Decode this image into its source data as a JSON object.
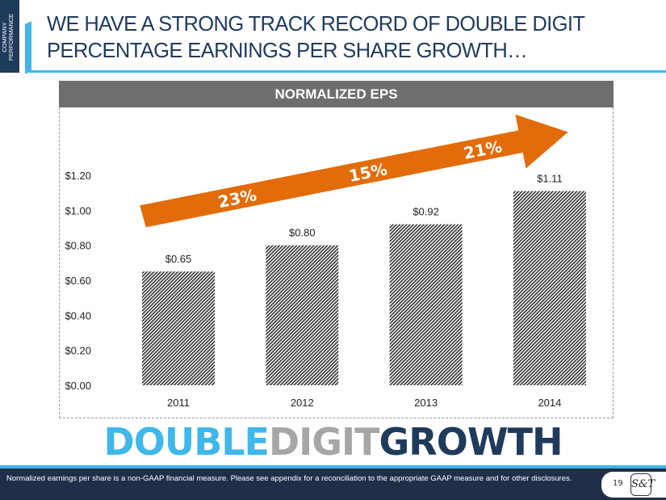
{
  "section_tag": "COMPANY PERFORMANCE",
  "title_line1": "WE HAVE A STRONG TRACK RECORD OF DOUBLE DIGIT",
  "title_line2": "PERCENTAGE EARNINGS PER SHARE GROWTH…",
  "chart_header": "NORMALIZED EPS",
  "tagline": {
    "part1": "DOUBLE",
    "part2": "DIGIT",
    "part3": "GROWTH"
  },
  "colors": {
    "navy": "#1f3b5c",
    "light_blue": "#3fb7ea",
    "gray": "#a6a6a6",
    "orange": "#e36c0a"
  },
  "footnote": "Normalized earnings per share is a non-GAAP financial measure. Please see appendix for a reconciliation to the appropriate GAAP measure and for other disclosures.",
  "page_number": "19",
  "logo_text": "S&T",
  "chart_data": {
    "type": "bar",
    "title": "NORMALIZED EPS",
    "categories": [
      "2011",
      "2012",
      "2013",
      "2014"
    ],
    "values": [
      0.65,
      0.8,
      0.92,
      1.11
    ],
    "data_labels": [
      "$0.65",
      "$0.80",
      "$0.92",
      "$1.11"
    ],
    "ylim": [
      0,
      1.2
    ],
    "yticks": [
      0,
      0.2,
      0.4,
      0.6,
      0.8,
      1.0,
      1.2
    ],
    "ytick_labels": [
      "$0.00",
      "$0.20",
      "$0.40",
      "$0.60",
      "$0.80",
      "$1.00",
      "$1.20"
    ],
    "xlabel": "",
    "ylabel": "",
    "grid": false,
    "legend": "none",
    "annotations": [
      "23%",
      "15%",
      "21%"
    ]
  }
}
